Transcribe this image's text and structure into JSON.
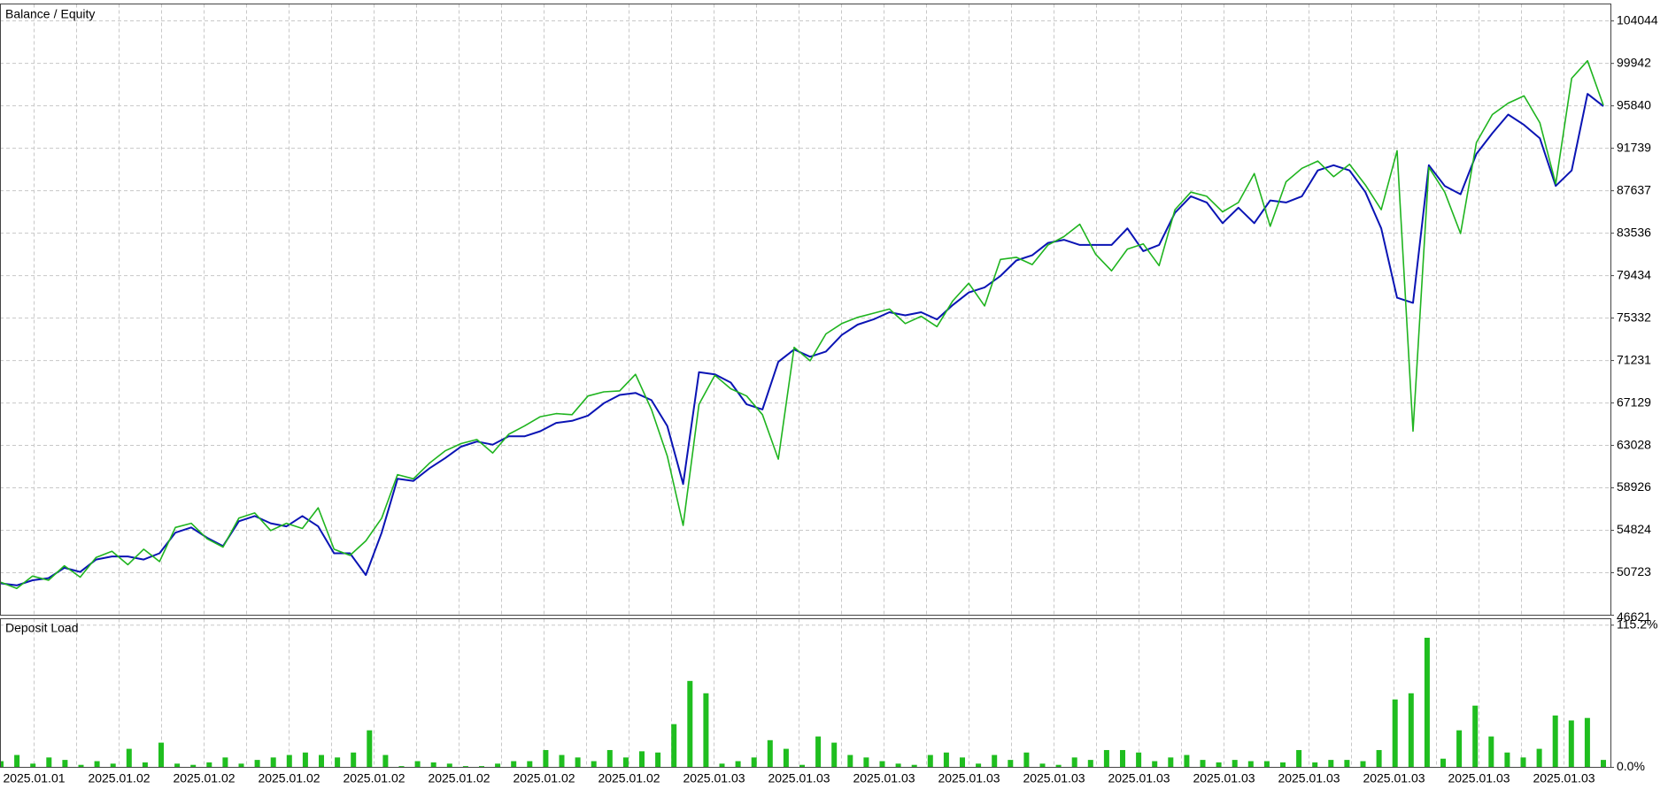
{
  "chart_data": [
    {
      "type": "line",
      "series": [
        {
          "name": "Balance",
          "color": "#0a14b4",
          "values": [
            49700,
            49500,
            50000,
            50200,
            51200,
            50800,
            52000,
            52300,
            52300,
            52000,
            52600,
            54600,
            55100,
            54100,
            53300,
            55700,
            56200,
            55500,
            55200,
            56200,
            55200,
            52600,
            52600,
            50500,
            54600,
            59800,
            59600,
            60800,
            61800,
            62900,
            63400,
            63100,
            63900,
            63900,
            64400,
            65200,
            65400,
            65900,
            67100,
            67900,
            68100,
            67400,
            64900,
            59300,
            70100,
            69900,
            69100,
            67000,
            66500,
            71100,
            72300,
            71600,
            72100,
            73700,
            74700,
            75200,
            75900,
            75600,
            75900,
            75200,
            76600,
            77800,
            78300,
            79400,
            80900,
            81400,
            82600,
            82900,
            82400,
            82400,
            82400,
            84000,
            81800,
            82400,
            85500,
            87100,
            86500,
            84500,
            86000,
            84500,
            86700,
            86500,
            87100,
            89600,
            90100,
            89600,
            87500,
            84000,
            77300,
            76800,
            90100,
            88100,
            87300,
            91200,
            93200,
            95000,
            94000,
            92700,
            88100,
            89600,
            97000,
            95800
          ]
        },
        {
          "name": "Equity",
          "color": "#1fb41f",
          "values": [
            49800,
            49200,
            50400,
            50000,
            51400,
            50300,
            52200,
            52800,
            51500,
            53000,
            51800,
            55100,
            55500,
            54000,
            53200,
            56000,
            56500,
            54800,
            55500,
            55000,
            57000,
            53000,
            52400,
            53800,
            56000,
            60200,
            59800,
            61300,
            62500,
            63200,
            63600,
            62300,
            64100,
            64900,
            65800,
            66100,
            66000,
            67800,
            68200,
            68300,
            69900,
            66500,
            62000,
            55300,
            67000,
            69800,
            68500,
            67800,
            66000,
            61700,
            72500,
            71200,
            73800,
            74800,
            75400,
            75800,
            76200,
            74800,
            75500,
            74500,
            77000,
            78700,
            76500,
            81000,
            81200,
            80500,
            82400,
            83200,
            84400,
            81500,
            79900,
            82000,
            82500,
            80400,
            85800,
            87500,
            87100,
            85600,
            86500,
            89300,
            84200,
            88500,
            89800,
            90500,
            89000,
            90200,
            88200,
            85800,
            91500,
            64400,
            89900,
            87500,
            83500,
            92300,
            95000,
            96100,
            96800,
            94200,
            88300,
            98500,
            100200,
            95900
          ]
        }
      ],
      "ylim": [
        46621,
        105684
      ],
      "yticks": [
        46621,
        50723,
        54824,
        58926,
        63028,
        67129,
        71231,
        75332,
        79434,
        83536,
        87637,
        91739,
        95840,
        99942,
        104044
      ],
      "grid": true
    },
    {
      "type": "bar",
      "title": "Deposit Load",
      "color": "#1fbe1f",
      "values": [
        5,
        10,
        3,
        8,
        6,
        2,
        5,
        3,
        15,
        4,
        20,
        3,
        2,
        4,
        8,
        3,
        6,
        8,
        10,
        12,
        10,
        8,
        12,
        30,
        10,
        1,
        5,
        4,
        3,
        1,
        1,
        3,
        5,
        5,
        14,
        10,
        8,
        5,
        14,
        8,
        13,
        12,
        35,
        70,
        60,
        3,
        5,
        8,
        22,
        15,
        2,
        25,
        20,
        10,
        8,
        5,
        3,
        2,
        10,
        12,
        8,
        3,
        10,
        6,
        12,
        3,
        2,
        8,
        6,
        14,
        14,
        12,
        5,
        8,
        10,
        6,
        4,
        6,
        5,
        5,
        4,
        14,
        4,
        6,
        6,
        5,
        14,
        55,
        60,
        105,
        7,
        30,
        50,
        25,
        12,
        8,
        15,
        42,
        38,
        40,
        6
      ],
      "ylim": [
        0,
        120.4
      ],
      "yticks": [
        {
          "value": 0,
          "label": "0.0%"
        },
        {
          "value": 115.2,
          "label": "115.2%"
        }
      ],
      "x_labels": [
        "2025.01.01",
        "2025.01.02",
        "2025.01.02",
        "2025.01.02",
        "2025.01.02",
        "2025.01.02",
        "2025.01.02",
        "2025.01.02",
        "2025.01.03",
        "2025.01.03",
        "2025.01.03",
        "2025.01.03",
        "2025.01.03",
        "2025.01.03",
        "2025.01.03",
        "2025.01.03",
        "2025.01.03",
        "2025.01.03",
        "2025.01.03"
      ],
      "grid": true
    }
  ]
}
